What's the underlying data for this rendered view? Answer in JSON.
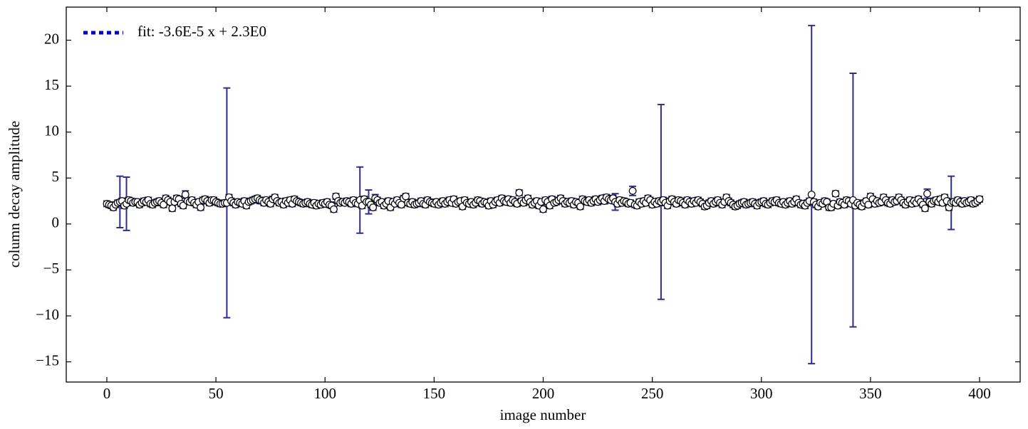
{
  "chart_data": {
    "type": "scatter",
    "xlabel": "image number",
    "ylabel": "column decay amplitude",
    "xlim": [
      -18.6,
      418.6
    ],
    "ylim": [
      -17.2,
      23.6
    ],
    "xticks": [
      0,
      50,
      100,
      150,
      200,
      250,
      300,
      350,
      400
    ],
    "yticks": [
      {
        "value": -15,
        "label": "−15"
      },
      {
        "value": -10,
        "label": "−10"
      },
      {
        "value": -5,
        "label": "−5"
      },
      0,
      5,
      10,
      15,
      20
    ],
    "legend": "upper left",
    "series": [
      {
        "color": "#2e2e8a",
        "marker_fill": "#ffffff",
        "marker_edge": "#000000",
        "x": [
          0,
          1,
          2,
          3,
          4,
          5,
          6,
          7,
          8,
          9,
          10,
          11,
          12,
          13,
          14,
          15,
          16,
          17,
          18,
          19,
          20,
          21,
          22,
          23,
          24,
          25,
          26,
          27,
          28,
          29,
          30,
          31,
          32,
          33,
          34,
          35,
          36,
          37,
          38,
          39,
          40,
          41,
          42,
          43,
          44,
          45,
          46,
          47,
          48,
          49,
          50,
          51,
          52,
          53,
          54,
          55,
          56,
          57,
          58,
          59,
          60,
          61,
          62,
          63,
          64,
          65,
          66,
          67,
          68,
          69,
          70,
          71,
          72,
          73,
          74,
          75,
          76,
          77,
          78,
          79,
          80,
          81,
          82,
          83,
          84,
          85,
          86,
          87,
          88,
          89,
          90,
          91,
          92,
          93,
          94,
          95,
          96,
          97,
          98,
          99,
          100,
          101,
          102,
          103,
          104,
          105,
          106,
          107,
          108,
          109,
          110,
          111,
          112,
          113,
          114,
          115,
          116,
          117,
          118,
          119,
          120,
          121,
          122,
          123,
          124,
          125,
          126,
          127,
          128,
          129,
          130,
          131,
          132,
          133,
          134,
          135,
          136,
          137,
          138,
          139,
          140,
          141,
          142,
          143,
          144,
          145,
          146,
          147,
          148,
          149,
          150,
          151,
          152,
          153,
          154,
          155,
          156,
          157,
          158,
          159,
          160,
          161,
          162,
          163,
          164,
          165,
          166,
          167,
          168,
          169,
          170,
          171,
          172,
          173,
          174,
          175,
          176,
          177,
          178,
          179,
          180,
          181,
          182,
          183,
          184,
          185,
          186,
          187,
          188,
          189,
          190,
          191,
          192,
          193,
          194,
          195,
          196,
          197,
          198,
          199,
          200,
          201,
          202,
          203,
          204,
          205,
          206,
          207,
          208,
          209,
          210,
          211,
          212,
          213,
          214,
          215,
          216,
          217,
          218,
          219,
          220,
          221,
          222,
          223,
          224,
          225,
          226,
          227,
          228,
          229,
          230,
          231,
          232,
          233,
          234,
          235,
          236,
          237,
          238,
          239,
          240,
          241,
          242,
          243,
          244,
          245,
          246,
          247,
          248,
          249,
          250,
          251,
          252,
          253,
          254,
          255,
          256,
          257,
          258,
          259,
          260,
          261,
          262,
          263,
          264,
          265,
          266,
          267,
          268,
          269,
          270,
          271,
          272,
          273,
          274,
          275,
          276,
          277,
          278,
          279,
          280,
          281,
          282,
          283,
          284,
          285,
          286,
          287,
          288,
          289,
          290,
          291,
          292,
          293,
          294,
          295,
          296,
          297,
          298,
          299,
          300,
          301,
          302,
          303,
          304,
          305,
          306,
          307,
          308,
          309,
          310,
          311,
          312,
          313,
          314,
          315,
          316,
          317,
          318,
          319,
          320,
          321,
          322,
          323,
          324,
          325,
          326,
          327,
          328,
          329,
          330,
          331,
          332,
          333,
          334,
          335,
          336,
          337,
          338,
          339,
          340,
          341,
          342,
          343,
          344,
          345,
          346,
          347,
          348,
          349,
          350,
          351,
          352,
          353,
          354,
          355,
          356,
          357,
          358,
          359,
          360,
          361,
          362,
          363,
          364,
          365,
          366,
          367,
          368,
          369,
          370,
          371,
          372,
          373,
          374,
          375,
          376,
          377,
          378,
          379,
          380,
          381,
          382,
          383,
          384,
          385,
          386,
          387,
          388,
          389,
          390,
          391,
          392,
          393,
          394,
          395,
          396,
          397,
          398,
          399,
          400
        ],
        "values": [
          2.2,
          2.1,
          2.0,
          1.8,
          2.1,
          2.3,
          2.4,
          2.5,
          2.0,
          2.2,
          2.6,
          2.5,
          2.3,
          2.4,
          2.4,
          2.1,
          2.3,
          2.5,
          2.4,
          2.6,
          2.2,
          2.1,
          2.3,
          2.4,
          2.5,
          2.3,
          2.1,
          2.8,
          2.6,
          2.4,
          1.7,
          2.4,
          2.8,
          2.7,
          2.2,
          2.0,
          3.2,
          2.5,
          2.4,
          2.6,
          2.3,
          2.1,
          2.4,
          1.8,
          2.6,
          2.7,
          2.5,
          2.3,
          2.6,
          2.6,
          2.4,
          2.3,
          2.2,
          2.2,
          2.3,
          2.3,
          2.9,
          2.5,
          2.3,
          2.1,
          2.4,
          2.3,
          2.2,
          2.5,
          2.0,
          2.4,
          2.5,
          2.6,
          2.7,
          2.8,
          2.6,
          2.5,
          2.3,
          2.6,
          2.4,
          2.2,
          2.7,
          2.9,
          2.5,
          2.3,
          2.4,
          2.1,
          2.5,
          2.3,
          2.6,
          2.2,
          2.7,
          2.5,
          2.4,
          2.3,
          2.2,
          2.3,
          2.4,
          2.2,
          2.1,
          2.3,
          2.0,
          2.2,
          2.1,
          2.3,
          2.2,
          2.4,
          2.1,
          2.0,
          1.6,
          3.0,
          2.5,
          2.3,
          2.4,
          2.3,
          2.5,
          2.4,
          2.2,
          2.6,
          2.3,
          2.2,
          2.6,
          2.0,
          2.7,
          2.4,
          2.4,
          2.1,
          1.8,
          2.8,
          2.6,
          2.3,
          2.4,
          2.0,
          2.2,
          2.5,
          1.8,
          2.4,
          2.2,
          2.6,
          2.3,
          2.1,
          2.8,
          3.0,
          2.3,
          2.2,
          2.4,
          2.1,
          2.2,
          2.3,
          2.5,
          2.2,
          2.1,
          2.6,
          2.4,
          2.3,
          2.2,
          2.4,
          2.1,
          2.3,
          2.5,
          2.2,
          2.4,
          2.6,
          2.3,
          2.7,
          2.2,
          2.4,
          2.5,
          1.9,
          2.6,
          2.3,
          2.2,
          2.4,
          2.1,
          2.3,
          2.6,
          2.5,
          2.2,
          2.4,
          2.3,
          2.0,
          2.5,
          2.1,
          2.4,
          2.6,
          2.3,
          2.8,
          2.5,
          2.4,
          2.7,
          2.3,
          2.6,
          2.4,
          2.2,
          3.4,
          2.5,
          2.3,
          2.6,
          2.8,
          2.4,
          2.1,
          2.3,
          2.5,
          2.0,
          2.4,
          1.6,
          2.6,
          2.4,
          2.0,
          2.7,
          2.3,
          2.4,
          2.6,
          2.8,
          2.5,
          2.2,
          2.4,
          2.3,
          2.5,
          2.1,
          2.4,
          2.3,
          1.9,
          2.7,
          2.5,
          2.4,
          2.6,
          2.3,
          2.5,
          2.7,
          2.4,
          2.6,
          2.8,
          2.5,
          2.9,
          2.7,
          2.6,
          2.8,
          2.4,
          2.2,
          2.6,
          2.3,
          2.5,
          2.4,
          2.2,
          2.3,
          3.6,
          2.1,
          2.0,
          2.4,
          2.2,
          2.5,
          2.3,
          2.8,
          2.6,
          2.1,
          2.4,
          2.2,
          2.5,
          2.4,
          2.6,
          2.3,
          2.0,
          2.5,
          2.7,
          2.4,
          2.2,
          2.6,
          2.5,
          2.3,
          2.1,
          2.6,
          2.4,
          2.2,
          2.5,
          2.3,
          2.6,
          2.4,
          2.2,
          1.9,
          2.0,
          2.3,
          2.5,
          2.2,
          2.4,
          2.6,
          2.3,
          2.1,
          2.4,
          2.9,
          2.5,
          2.3,
          2.1,
          1.9,
          2.0,
          2.2,
          2.3,
          2.4,
          2.1,
          2.2,
          2.3,
          2.4,
          2.2,
          2.0,
          2.3,
          2.4,
          2.5,
          2.2,
          2.1,
          2.3,
          2.5,
          2.4,
          2.6,
          2.3,
          2.2,
          2.4,
          2.1,
          2.3,
          2.5,
          2.2,
          2.4,
          2.7,
          2.3,
          2.1,
          2.2,
          2.0,
          2.3,
          2.5,
          3.2,
          2.4,
          2.1,
          1.9,
          2.3,
          2.2,
          2.5,
          2.4,
          1.8,
          1.8,
          2.2,
          3.3,
          2.0,
          2.4,
          2.3,
          2.1,
          2.6,
          2.5,
          2.2,
          2.6,
          2.0,
          2.3,
          2.1,
          1.9,
          2.3,
          2.5,
          2.1,
          3.0,
          2.7,
          2.2,
          2.5,
          2.3,
          2.4,
          2.9,
          2.6,
          2.3,
          2.2,
          2.6,
          2.4,
          2.5,
          2.9,
          2.6,
          2.3,
          2.1,
          2.4,
          2.6,
          2.2,
          2.5,
          2.3,
          2.7,
          2.4,
          2.1,
          1.7,
          3.3,
          2.4,
          2.2,
          2.5,
          2.6,
          2.4,
          2.7,
          2.3,
          2.9,
          2.5,
          1.8,
          2.3,
          2.4,
          2.3,
          2.6,
          2.4,
          2.2,
          2.5,
          2.3,
          2.4,
          2.6,
          2.2,
          2.3,
          2.5,
          2.7
        ],
        "errors": [
          0.3,
          0.3,
          0.3,
          0.3,
          0.3,
          0.3,
          2.8,
          0.3,
          0.3,
          2.9,
          0.3,
          0.3,
          0.3,
          0.3,
          0.3,
          0.3,
          0.3,
          0.3,
          0.3,
          0.3,
          0.3,
          0.3,
          0.3,
          0.3,
          0.3,
          0.3,
          0.3,
          0.3,
          0.3,
          0.3,
          0.3,
          0.3,
          0.3,
          0.3,
          0.3,
          0.3,
          0.4,
          0.3,
          0.3,
          0.3,
          0.3,
          0.3,
          0.3,
          0.3,
          0.3,
          0.3,
          0.3,
          0.3,
          0.3,
          0.3,
          0.3,
          0.3,
          0.3,
          0.3,
          0.3,
          12.5,
          0.3,
          0.3,
          0.3,
          0.3,
          0.3,
          0.3,
          0.3,
          0.3,
          0.3,
          0.3,
          0.3,
          0.3,
          0.3,
          0.3,
          0.3,
          0.3,
          0.3,
          0.3,
          0.3,
          0.3,
          0.3,
          0.3,
          0.3,
          0.3,
          0.3,
          0.3,
          0.3,
          0.3,
          0.3,
          0.3,
          0.3,
          0.3,
          0.3,
          0.3,
          0.3,
          0.3,
          0.3,
          0.3,
          0.3,
          0.3,
          0.3,
          0.3,
          0.3,
          0.3,
          0.3,
          0.3,
          0.3,
          0.3,
          0.3,
          0.3,
          0.3,
          0.3,
          0.3,
          0.3,
          0.3,
          0.3,
          0.3,
          0.3,
          0.3,
          0.3,
          3.6,
          0.3,
          0.3,
          0.3,
          1.3,
          0.3,
          0.3,
          0.4,
          0.3,
          0.3,
          0.3,
          0.3,
          0.3,
          0.3,
          0.3,
          0.3,
          0.3,
          0.3,
          0.3,
          0.3,
          0.3,
          0.3,
          0.3,
          0.3,
          0.3,
          0.3,
          0.3,
          0.3,
          0.3,
          0.3,
          0.3,
          0.3,
          0.3,
          0.3,
          0.3,
          0.3,
          0.3,
          0.3,
          0.3,
          0.3,
          0.3,
          0.3,
          0.3,
          0.3,
          0.3,
          0.3,
          0.3,
          0.3,
          0.3,
          0.3,
          0.3,
          0.3,
          0.3,
          0.3,
          0.3,
          0.3,
          0.3,
          0.3,
          0.3,
          0.3,
          0.3,
          0.3,
          0.3,
          0.3,
          0.3,
          0.3,
          0.3,
          0.3,
          0.3,
          0.3,
          0.3,
          0.3,
          0.3,
          0.3,
          0.3,
          0.3,
          0.3,
          0.3,
          0.3,
          0.3,
          0.3,
          0.3,
          0.3,
          0.3,
          0.3,
          0.3,
          0.3,
          0.3,
          0.3,
          0.3,
          0.3,
          0.3,
          0.3,
          0.3,
          0.3,
          0.3,
          0.3,
          0.3,
          0.3,
          0.3,
          0.3,
          0.3,
          0.3,
          0.3,
          0.3,
          0.3,
          0.3,
          0.3,
          0.3,
          0.3,
          0.3,
          0.3,
          0.3,
          0.3,
          0.3,
          0.3,
          0.3,
          0.9,
          0.3,
          0.3,
          0.3,
          0.3,
          0.3,
          0.3,
          0.3,
          0.5,
          0.3,
          0.3,
          0.3,
          0.3,
          0.3,
          0.3,
          0.3,
          0.3,
          0.3,
          0.3,
          0.3,
          0.3,
          10.6,
          0.3,
          0.3,
          0.3,
          0.3,
          0.3,
          0.3,
          0.3,
          0.3,
          0.3,
          0.3,
          0.3,
          0.3,
          0.3,
          0.3,
          0.3,
          0.3,
          0.3,
          0.3,
          0.3,
          0.3,
          0.3,
          0.3,
          0.3,
          0.3,
          0.3,
          0.3,
          0.3,
          0.3,
          0.3,
          0.3,
          0.3,
          0.3,
          0.3,
          0.3,
          0.3,
          0.3,
          0.3,
          0.3,
          0.3,
          0.3,
          0.3,
          0.3,
          0.3,
          0.3,
          0.3,
          0.3,
          0.3,
          0.3,
          0.3,
          0.3,
          0.3,
          0.3,
          0.3,
          0.3,
          0.3,
          0.3,
          0.3,
          0.3,
          0.3,
          0.3,
          0.3,
          0.3,
          0.3,
          0.3,
          0.3,
          0.3,
          0.3,
          0.3,
          18.4,
          0.3,
          0.3,
          0.3,
          0.3,
          0.3,
          0.3,
          0.3,
          0.3,
          0.3,
          0.3,
          0.3,
          0.3,
          0.3,
          0.3,
          0.3,
          0.3,
          0.3,
          0.3,
          13.8,
          0.3,
          0.3,
          0.3,
          0.3,
          0.3,
          0.3,
          0.3,
          0.3,
          0.3,
          0.3,
          0.3,
          0.3,
          0.3,
          0.3,
          0.3,
          0.3,
          0.3,
          0.3,
          0.3,
          0.3,
          0.3,
          0.3,
          0.3,
          0.3,
          0.3,
          0.3,
          0.3,
          0.3,
          0.3,
          0.3,
          0.3,
          0.3,
          0.3,
          0.5,
          0.3,
          0.3,
          0.3,
          0.3,
          0.3,
          0.3,
          0.3,
          0.3,
          0.3,
          0.3,
          2.9,
          0.3,
          0.3,
          0.3,
          0.3,
          0.3,
          0.3,
          0.3,
          0.3,
          0.3,
          0.3,
          0.3,
          0.3,
          0.3
        ]
      },
      {
        "name": "fit: -3.6E-5 x + 2.3E0",
        "color": "#0000cc",
        "style": "dotted",
        "x": [
          0,
          400
        ],
        "values": [
          2.3,
          2.2856
        ]
      }
    ]
  }
}
